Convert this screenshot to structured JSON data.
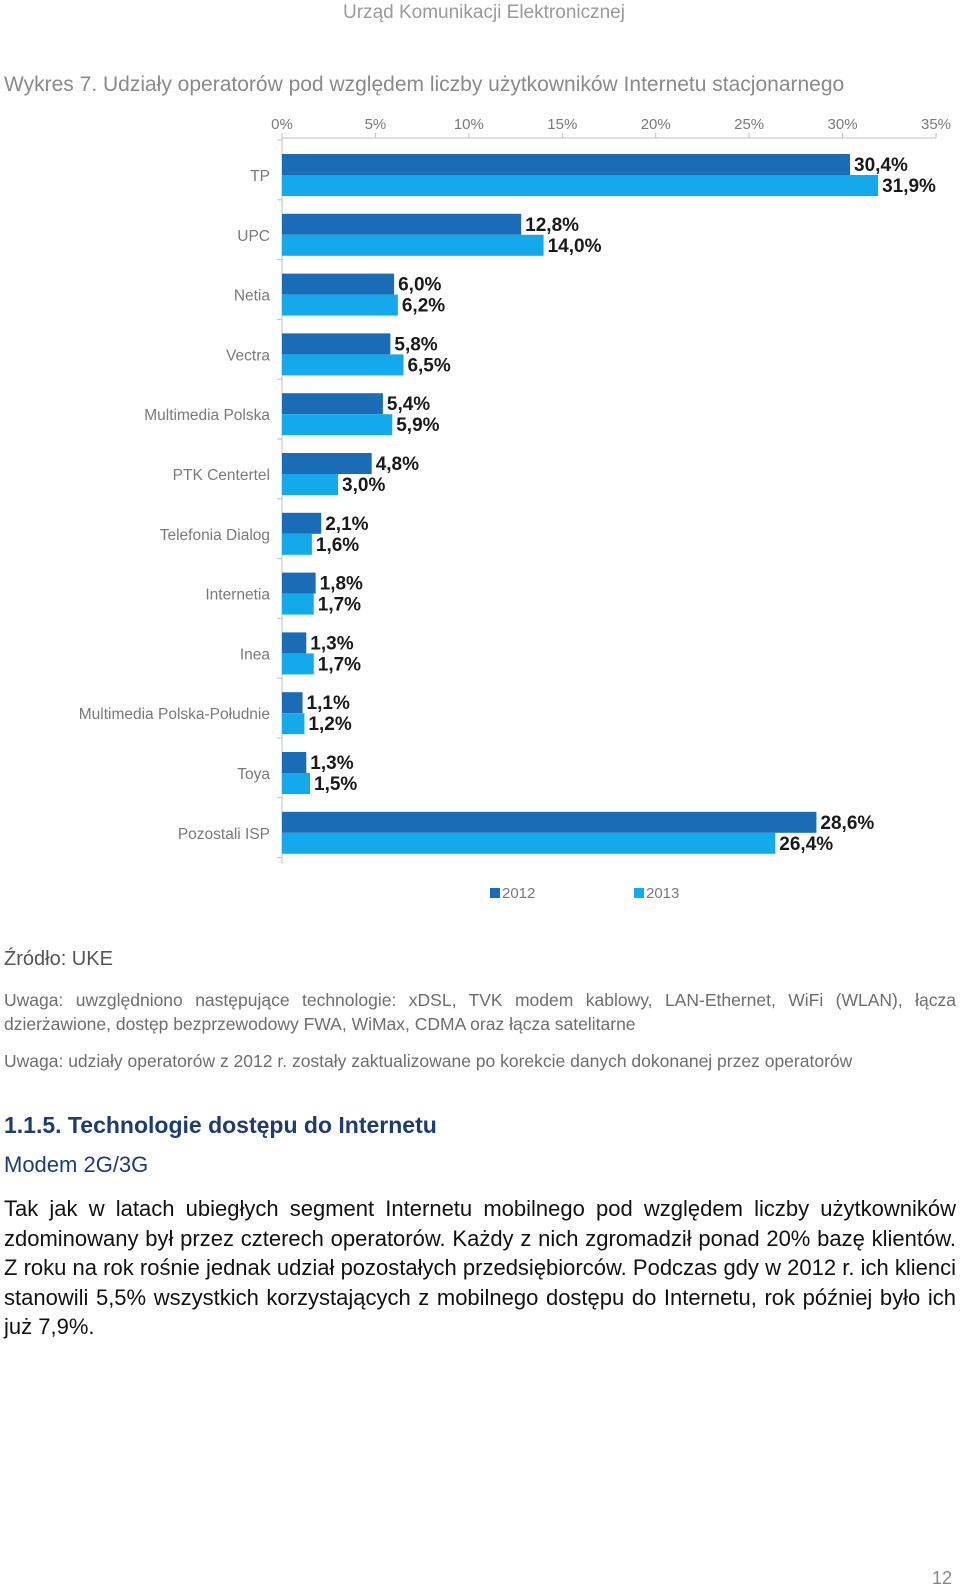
{
  "header": {
    "title": "Urząd Komunikacji Elektronicznej"
  },
  "chart_caption": "Wykres 7. Udziały operatorów pod względem liczby użytkowników Internetu stacjonarnego",
  "chart_data": {
    "type": "bar",
    "orientation": "horizontal",
    "title": "",
    "xlabel": "",
    "ylabel": "",
    "xlim": [
      0,
      35
    ],
    "x_ticks": [
      "0%",
      "5%",
      "10%",
      "15%",
      "20%",
      "25%",
      "30%",
      "35%"
    ],
    "categories": [
      "TP",
      "UPC",
      "Netia",
      "Vectra",
      "Multimedia Polska",
      "PTK Centertel",
      "Telefonia Dialog",
      "Internetia",
      "Inea",
      "Multimedia Polska-Południe",
      "Toya",
      "Pozostali ISP"
    ],
    "series": [
      {
        "name": "2012",
        "color": "#1b6cb7",
        "values": [
          30.4,
          12.8,
          6.0,
          5.8,
          5.4,
          4.8,
          2.1,
          1.8,
          1.3,
          1.1,
          1.3,
          28.6
        ],
        "labels": [
          "30,4%",
          "12,8%",
          "6,0%",
          "5,8%",
          "5,4%",
          "4,8%",
          "2,1%",
          "1,8%",
          "1,3%",
          "1,1%",
          "1,3%",
          "28,6%"
        ]
      },
      {
        "name": "2013",
        "color": "#13a9ea",
        "values": [
          31.9,
          14.0,
          6.2,
          6.5,
          5.9,
          3.0,
          1.6,
          1.7,
          1.7,
          1.2,
          1.5,
          26.4
        ],
        "labels": [
          "31,9%",
          "14,0%",
          "6,2%",
          "6,5%",
          "5,9%",
          "3,0%",
          "1,6%",
          "1,7%",
          "1,7%",
          "1,2%",
          "1,5%",
          "26,4%"
        ]
      }
    ],
    "grid": false,
    "legend": "bottom"
  },
  "source": "Źródło: UKE",
  "note1": "Uwaga: uwzględniono następujące technologie: xDSL, TVK modem kablowy, LAN-Ethernet, WiFi (WLAN), łącza dzierżawione, dostęp bezprzewodowy FWA, WiMax, CDMA oraz łącza satelitarne",
  "note2": "Uwaga: udziały operatorów z 2012 r. zostały zaktualizowane po korekcie danych dokonanej przez operatorów",
  "section_heading": "1.1.5. Technologie dostępu do Internetu",
  "subsection_heading": "Modem 2G/3G",
  "paragraph": "Tak jak w latach ubiegłych segment Internetu mobilnego pod względem liczby użytkowników zdominowany był przez czterech operatorów. Każdy z nich zgromadził ponad 20% bazę klientów. Z roku na rok rośnie jednak udział pozostałych przedsiębiorców. Podczas gdy w 2012 r. ich klienci stanowili 5,5% wszystkich korzystających z mobilnego dostępu do Internetu, rok później było ich już 7,9%.",
  "page_number": "12"
}
